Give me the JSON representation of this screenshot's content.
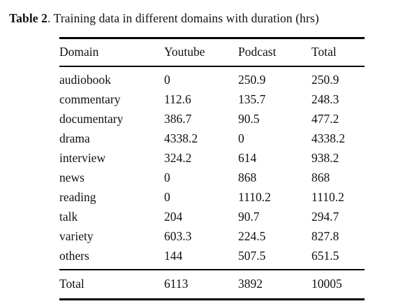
{
  "caption": {
    "label": "Table 2",
    "text": ". Training data in different domains with duration (hrs)"
  },
  "table": {
    "headers": [
      "Domain",
      "Youtube",
      "Podcast",
      "Total"
    ],
    "rows": [
      [
        "audiobook",
        "0",
        "250.9",
        "250.9"
      ],
      [
        "commentary",
        "112.6",
        "135.7",
        "248.3"
      ],
      [
        "documentary",
        "386.7",
        "90.5",
        "477.2"
      ],
      [
        "drama",
        "4338.2",
        "0",
        "4338.2"
      ],
      [
        "interview",
        "324.2",
        "614",
        "938.2"
      ],
      [
        "news",
        "0",
        "868",
        "868"
      ],
      [
        "reading",
        "0",
        "1110.2",
        "1110.2"
      ],
      [
        "talk",
        "204",
        "90.7",
        "294.7"
      ],
      [
        "variety",
        "603.3",
        "224.5",
        "827.8"
      ],
      [
        "others",
        "144",
        "507.5",
        "651.5"
      ]
    ],
    "footer": [
      "Total",
      "6113",
      "3892",
      "10005"
    ]
  },
  "chart_data": {
    "type": "table",
    "title": "Table 2. Training data in different domains with duration (hrs)",
    "columns": [
      "Domain",
      "Youtube",
      "Podcast",
      "Total"
    ],
    "rows": [
      {
        "Domain": "audiobook",
        "Youtube": 0,
        "Podcast": 250.9,
        "Total": 250.9
      },
      {
        "Domain": "commentary",
        "Youtube": 112.6,
        "Podcast": 135.7,
        "Total": 248.3
      },
      {
        "Domain": "documentary",
        "Youtube": 386.7,
        "Podcast": 90.5,
        "Total": 477.2
      },
      {
        "Domain": "drama",
        "Youtube": 4338.2,
        "Podcast": 0,
        "Total": 4338.2
      },
      {
        "Domain": "interview",
        "Youtube": 324.2,
        "Podcast": 614,
        "Total": 938.2
      },
      {
        "Domain": "news",
        "Youtube": 0,
        "Podcast": 868,
        "Total": 868
      },
      {
        "Domain": "reading",
        "Youtube": 0,
        "Podcast": 1110.2,
        "Total": 1110.2
      },
      {
        "Domain": "talk",
        "Youtube": 204,
        "Podcast": 90.7,
        "Total": 294.7
      },
      {
        "Domain": "variety",
        "Youtube": 603.3,
        "Podcast": 224.5,
        "Total": 827.8
      },
      {
        "Domain": "others",
        "Youtube": 144,
        "Podcast": 507.5,
        "Total": 651.5
      },
      {
        "Domain": "Total",
        "Youtube": 6113,
        "Podcast": 3892,
        "Total": 10005
      }
    ]
  }
}
